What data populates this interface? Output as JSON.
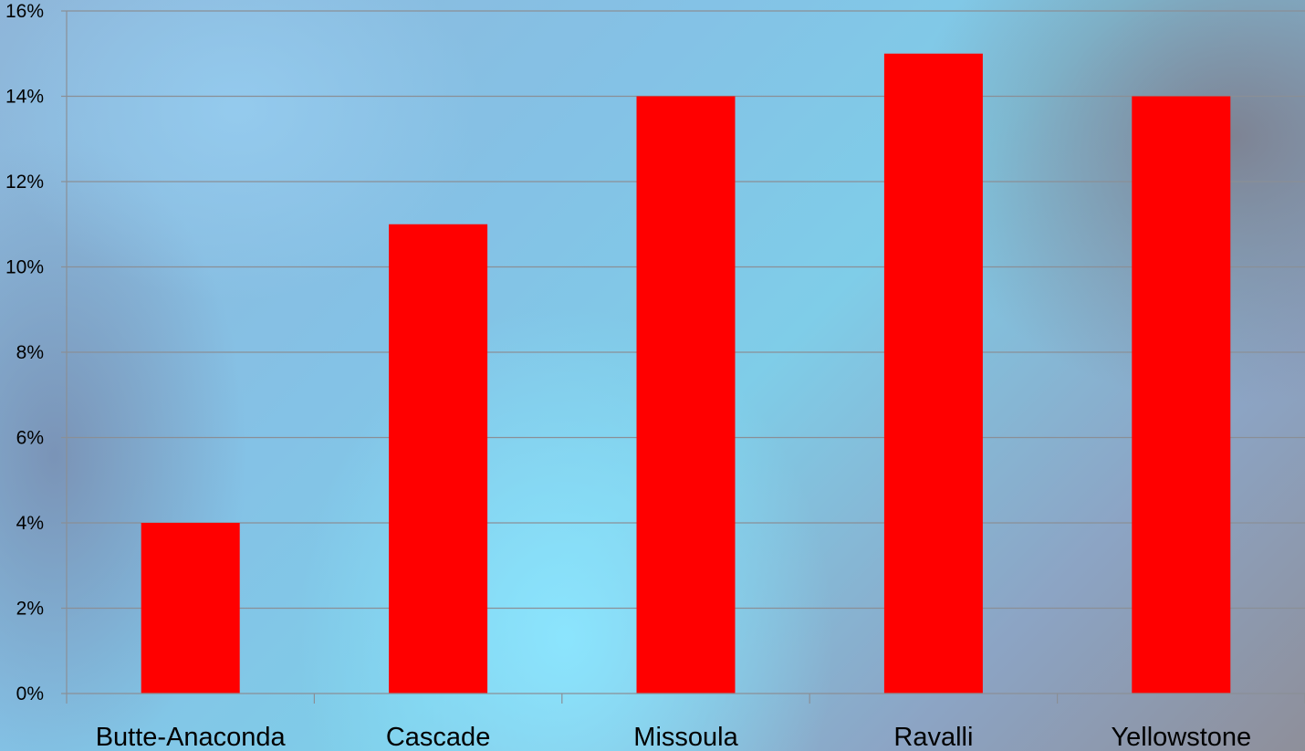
{
  "chart_data": {
    "type": "bar",
    "categories": [
      "Butte-Anaconda",
      "Cascade",
      "Missoula",
      "Ravalli",
      "Yellowstone"
    ],
    "values": [
      0.04,
      0.11,
      0.14,
      0.15,
      0.14
    ],
    "ylim": [
      0,
      0.16
    ],
    "yticks": [
      "0%",
      "2%",
      "4%",
      "6%",
      "8%",
      "10%",
      "12%",
      "14%",
      "16%"
    ],
    "ytick_values": [
      0,
      0.02,
      0.04,
      0.06,
      0.08,
      0.1,
      0.12,
      0.14,
      0.16
    ],
    "grid": true,
    "legend": "none",
    "bar_color": "#ff0000",
    "gridline_color": "#8a8f96"
  }
}
